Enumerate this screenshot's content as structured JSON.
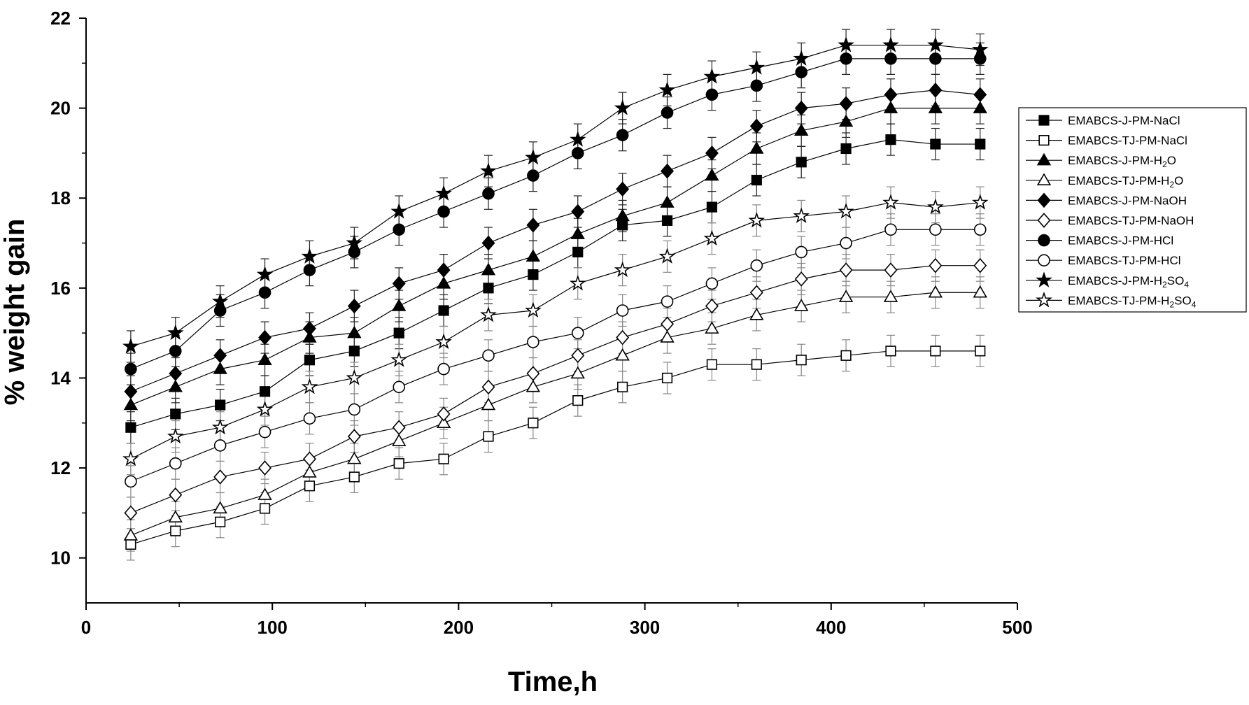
{
  "chart_data": {
    "type": "scatter",
    "title": "",
    "xlabel": "Time,h",
    "ylabel": "% weight gain",
    "xlim": [
      0,
      500
    ],
    "ylim": [
      9,
      22
    ],
    "x_ticks": [
      0,
      100,
      200,
      300,
      400,
      500
    ],
    "y_ticks": [
      10,
      12,
      14,
      16,
      18,
      20,
      22
    ],
    "x_tick_labels": [
      "0",
      "100",
      "200",
      "300",
      "400",
      "500"
    ],
    "y_tick_labels": [
      "10",
      "12",
      "14",
      "16",
      "18",
      "20",
      "22"
    ],
    "grid": false,
    "legend_position": "right",
    "error_bar": 0.35,
    "x": [
      24,
      48,
      72,
      96,
      120,
      144,
      168,
      192,
      216,
      240,
      264,
      288,
      312,
      336,
      360,
      384,
      408,
      432,
      456,
      480
    ],
    "series": [
      {
        "name": "EMABCS-J-PM-NaCl",
        "legend_parts": [
          [
            "EMABCS-J-PM-NaCl",
            ""
          ]
        ],
        "marker": "square",
        "filled": true,
        "values": [
          12.9,
          13.2,
          13.4,
          13.7,
          14.4,
          14.6,
          15.0,
          15.5,
          16.0,
          16.3,
          16.8,
          17.4,
          17.5,
          17.8,
          18.4,
          18.8,
          19.1,
          19.3,
          19.2,
          19.2
        ]
      },
      {
        "name": "EMABCS-TJ-PM-NaCl",
        "legend_parts": [
          [
            "EMABCS-TJ-PM-NaCl",
            ""
          ]
        ],
        "marker": "square",
        "filled": false,
        "values": [
          10.3,
          10.6,
          10.8,
          11.1,
          11.6,
          11.8,
          12.1,
          12.2,
          12.7,
          13.0,
          13.5,
          13.8,
          14.0,
          14.3,
          14.3,
          14.4,
          14.5,
          14.6,
          14.6,
          14.6
        ]
      },
      {
        "name": "EMABCS-J-PM-H2O",
        "legend_parts": [
          [
            "EMABCS-J-PM-H",
            ""
          ],
          [
            "2",
            "sub"
          ],
          [
            "O",
            ""
          ]
        ],
        "marker": "triangle",
        "filled": true,
        "values": [
          13.4,
          13.8,
          14.2,
          14.4,
          14.9,
          15.0,
          15.6,
          16.1,
          16.4,
          16.7,
          17.2,
          17.6,
          17.9,
          18.5,
          19.1,
          19.5,
          19.7,
          20.0,
          20.0,
          20.0
        ]
      },
      {
        "name": "EMABCS-TJ-PM-H2O",
        "legend_parts": [
          [
            "EMABCS-TJ-PM-H",
            ""
          ],
          [
            "2",
            "sub"
          ],
          [
            "O",
            ""
          ]
        ],
        "marker": "triangle",
        "filled": false,
        "values": [
          10.5,
          10.9,
          11.1,
          11.4,
          11.9,
          12.2,
          12.6,
          13.0,
          13.4,
          13.8,
          14.1,
          14.5,
          14.9,
          15.1,
          15.4,
          15.6,
          15.8,
          15.8,
          15.9,
          15.9
        ]
      },
      {
        "name": "EMABCS-J-PM-NaOH",
        "legend_parts": [
          [
            "EMABCS-J-PM-NaOH",
            ""
          ]
        ],
        "marker": "diamond",
        "filled": true,
        "values": [
          13.7,
          14.1,
          14.5,
          14.9,
          15.1,
          15.6,
          16.1,
          16.4,
          17.0,
          17.4,
          17.7,
          18.2,
          18.6,
          19.0,
          19.6,
          20.0,
          20.1,
          20.3,
          20.4,
          20.3
        ]
      },
      {
        "name": "EMABCS-TJ-PM-NaOH",
        "legend_parts": [
          [
            "EMABCS-TJ-PM-NaOH",
            ""
          ]
        ],
        "marker": "diamond",
        "filled": false,
        "values": [
          11.0,
          11.4,
          11.8,
          12.0,
          12.2,
          12.7,
          12.9,
          13.2,
          13.8,
          14.1,
          14.5,
          14.9,
          15.2,
          15.6,
          15.9,
          16.2,
          16.4,
          16.4,
          16.5,
          16.5
        ]
      },
      {
        "name": "EMABCS-J-PM-HCl",
        "legend_parts": [
          [
            "EMABCS-J-PM-HCl",
            ""
          ]
        ],
        "marker": "circle",
        "filled": true,
        "values": [
          14.2,
          14.6,
          15.5,
          15.9,
          16.4,
          16.8,
          17.3,
          17.7,
          18.1,
          18.5,
          19.0,
          19.4,
          19.9,
          20.3,
          20.5,
          20.8,
          21.1,
          21.1,
          21.1,
          21.1
        ]
      },
      {
        "name": "EMABCS-TJ-PM-HCl",
        "legend_parts": [
          [
            "EMABCS-TJ-PM-HCl",
            ""
          ]
        ],
        "marker": "circle",
        "filled": false,
        "values": [
          11.7,
          12.1,
          12.5,
          12.8,
          13.1,
          13.3,
          13.8,
          14.2,
          14.5,
          14.8,
          15.0,
          15.5,
          15.7,
          16.1,
          16.5,
          16.8,
          17.0,
          17.3,
          17.3,
          17.3
        ]
      },
      {
        "name": "EMABCS-J-PM-H2SO4",
        "legend_parts": [
          [
            "EMABCS-J-PM-H",
            ""
          ],
          [
            "2",
            "sub"
          ],
          [
            "SO",
            ""
          ],
          [
            "4",
            "sub"
          ]
        ],
        "marker": "star",
        "filled": true,
        "values": [
          14.7,
          15.0,
          15.7,
          16.3,
          16.7,
          17.0,
          17.7,
          18.1,
          18.6,
          18.9,
          19.3,
          20.0,
          20.4,
          20.7,
          20.9,
          21.1,
          21.4,
          21.4,
          21.4,
          21.3
        ]
      },
      {
        "name": "EMABCS-TJ-PM-H2SO4",
        "legend_parts": [
          [
            "EMABCS-TJ-PM-H",
            ""
          ],
          [
            "2",
            "sub"
          ],
          [
            "SO",
            ""
          ],
          [
            "4",
            "sub"
          ]
        ],
        "marker": "star",
        "filled": false,
        "values": [
          12.2,
          12.7,
          12.9,
          13.3,
          13.8,
          14.0,
          14.4,
          14.8,
          15.4,
          15.5,
          16.1,
          16.4,
          16.7,
          17.1,
          17.5,
          17.6,
          17.7,
          17.9,
          17.8,
          17.9
        ]
      }
    ]
  }
}
